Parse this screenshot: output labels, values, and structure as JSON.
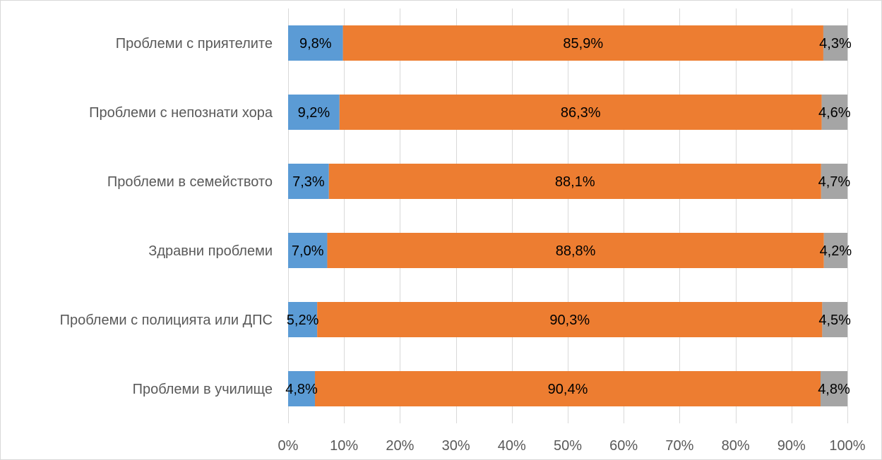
{
  "chart_data": {
    "type": "bar",
    "orientation": "horizontal",
    "stacked": true,
    "percent_stacked": true,
    "categories": [
      "Проблеми с приятелите",
      "Проблеми с непознати хора",
      "Проблеми в семейството",
      "Здравни проблеми",
      "Проблеми с полицията или ДПС",
      "Проблеми в училище"
    ],
    "series": [
      {
        "color": "#5b9bd5",
        "values": [
          9.8,
          9.2,
          7.3,
          7.0,
          5.2,
          4.8
        ],
        "labels": [
          "9,8%",
          "9,2%",
          "7,3%",
          "7,0%",
          "5,2%",
          "4,8%"
        ]
      },
      {
        "color": "#ed7d31",
        "values": [
          85.9,
          86.3,
          88.1,
          88.8,
          90.3,
          90.4
        ],
        "labels": [
          "85,9%",
          "86,3%",
          "88,1%",
          "88,8%",
          "90,3%",
          "90,4%"
        ]
      },
      {
        "color": "#a5a5a5",
        "values": [
          4.3,
          4.6,
          4.7,
          4.2,
          4.5,
          4.8
        ],
        "labels": [
          "4,3%",
          "4,6%",
          "4,7%",
          "4,2%",
          "4,5%",
          "4,8%"
        ]
      }
    ],
    "x_ticks": [
      "0%",
      "10%",
      "20%",
      "30%",
      "40%",
      "50%",
      "60%",
      "70%",
      "80%",
      "90%",
      "100%"
    ],
    "xlim": [
      0,
      100
    ],
    "grid": true,
    "legend": "none",
    "title": "",
    "xlabel": "",
    "ylabel": ""
  }
}
